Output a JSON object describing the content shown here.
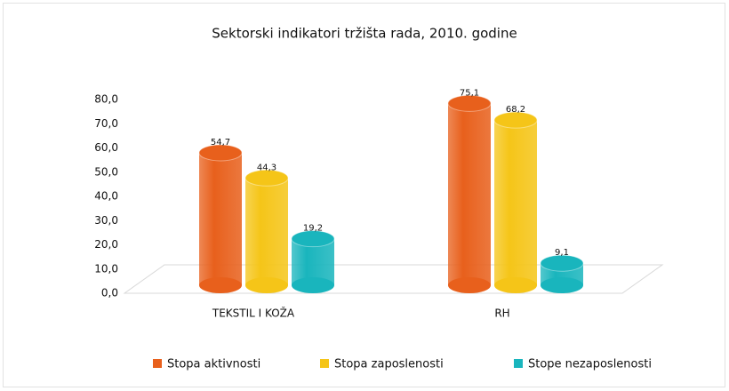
{
  "chart_data": {
    "type": "bar3d",
    "title": "Sektorski indikatori tržišta rada, 2010. godine",
    "categories": [
      "TEKSTIL I KOŽA",
      "RH"
    ],
    "series": [
      {
        "name": "Stopa aktivnosti",
        "color": "#e8601c",
        "values": [
          54.7,
          75.1
        ],
        "value_labels": [
          "54,7",
          "75,1"
        ]
      },
      {
        "name": "Stopa zaposlenosti",
        "color": "#f5c518",
        "values": [
          44.3,
          68.2
        ],
        "value_labels": [
          "44,3",
          "68,2"
        ]
      },
      {
        "name": "Stope nezaposlenosti",
        "color": "#19b5bd",
        "values": [
          19.2,
          9.1
        ],
        "value_labels": [
          "19,2",
          "9,1"
        ]
      }
    ],
    "ylim": [
      0,
      80
    ],
    "yticks": [
      {
        "value": 0,
        "label": "0,0"
      },
      {
        "value": 10,
        "label": "10,0"
      },
      {
        "value": 20,
        "label": "20,0"
      },
      {
        "value": 30,
        "label": "30,0"
      },
      {
        "value": 40,
        "label": "40,0"
      },
      {
        "value": 50,
        "label": "50,0"
      },
      {
        "value": 60,
        "label": "60,0"
      },
      {
        "value": 70,
        "label": "70,0"
      },
      {
        "value": 80,
        "label": "80,0"
      }
    ],
    "legend": "bottom"
  }
}
